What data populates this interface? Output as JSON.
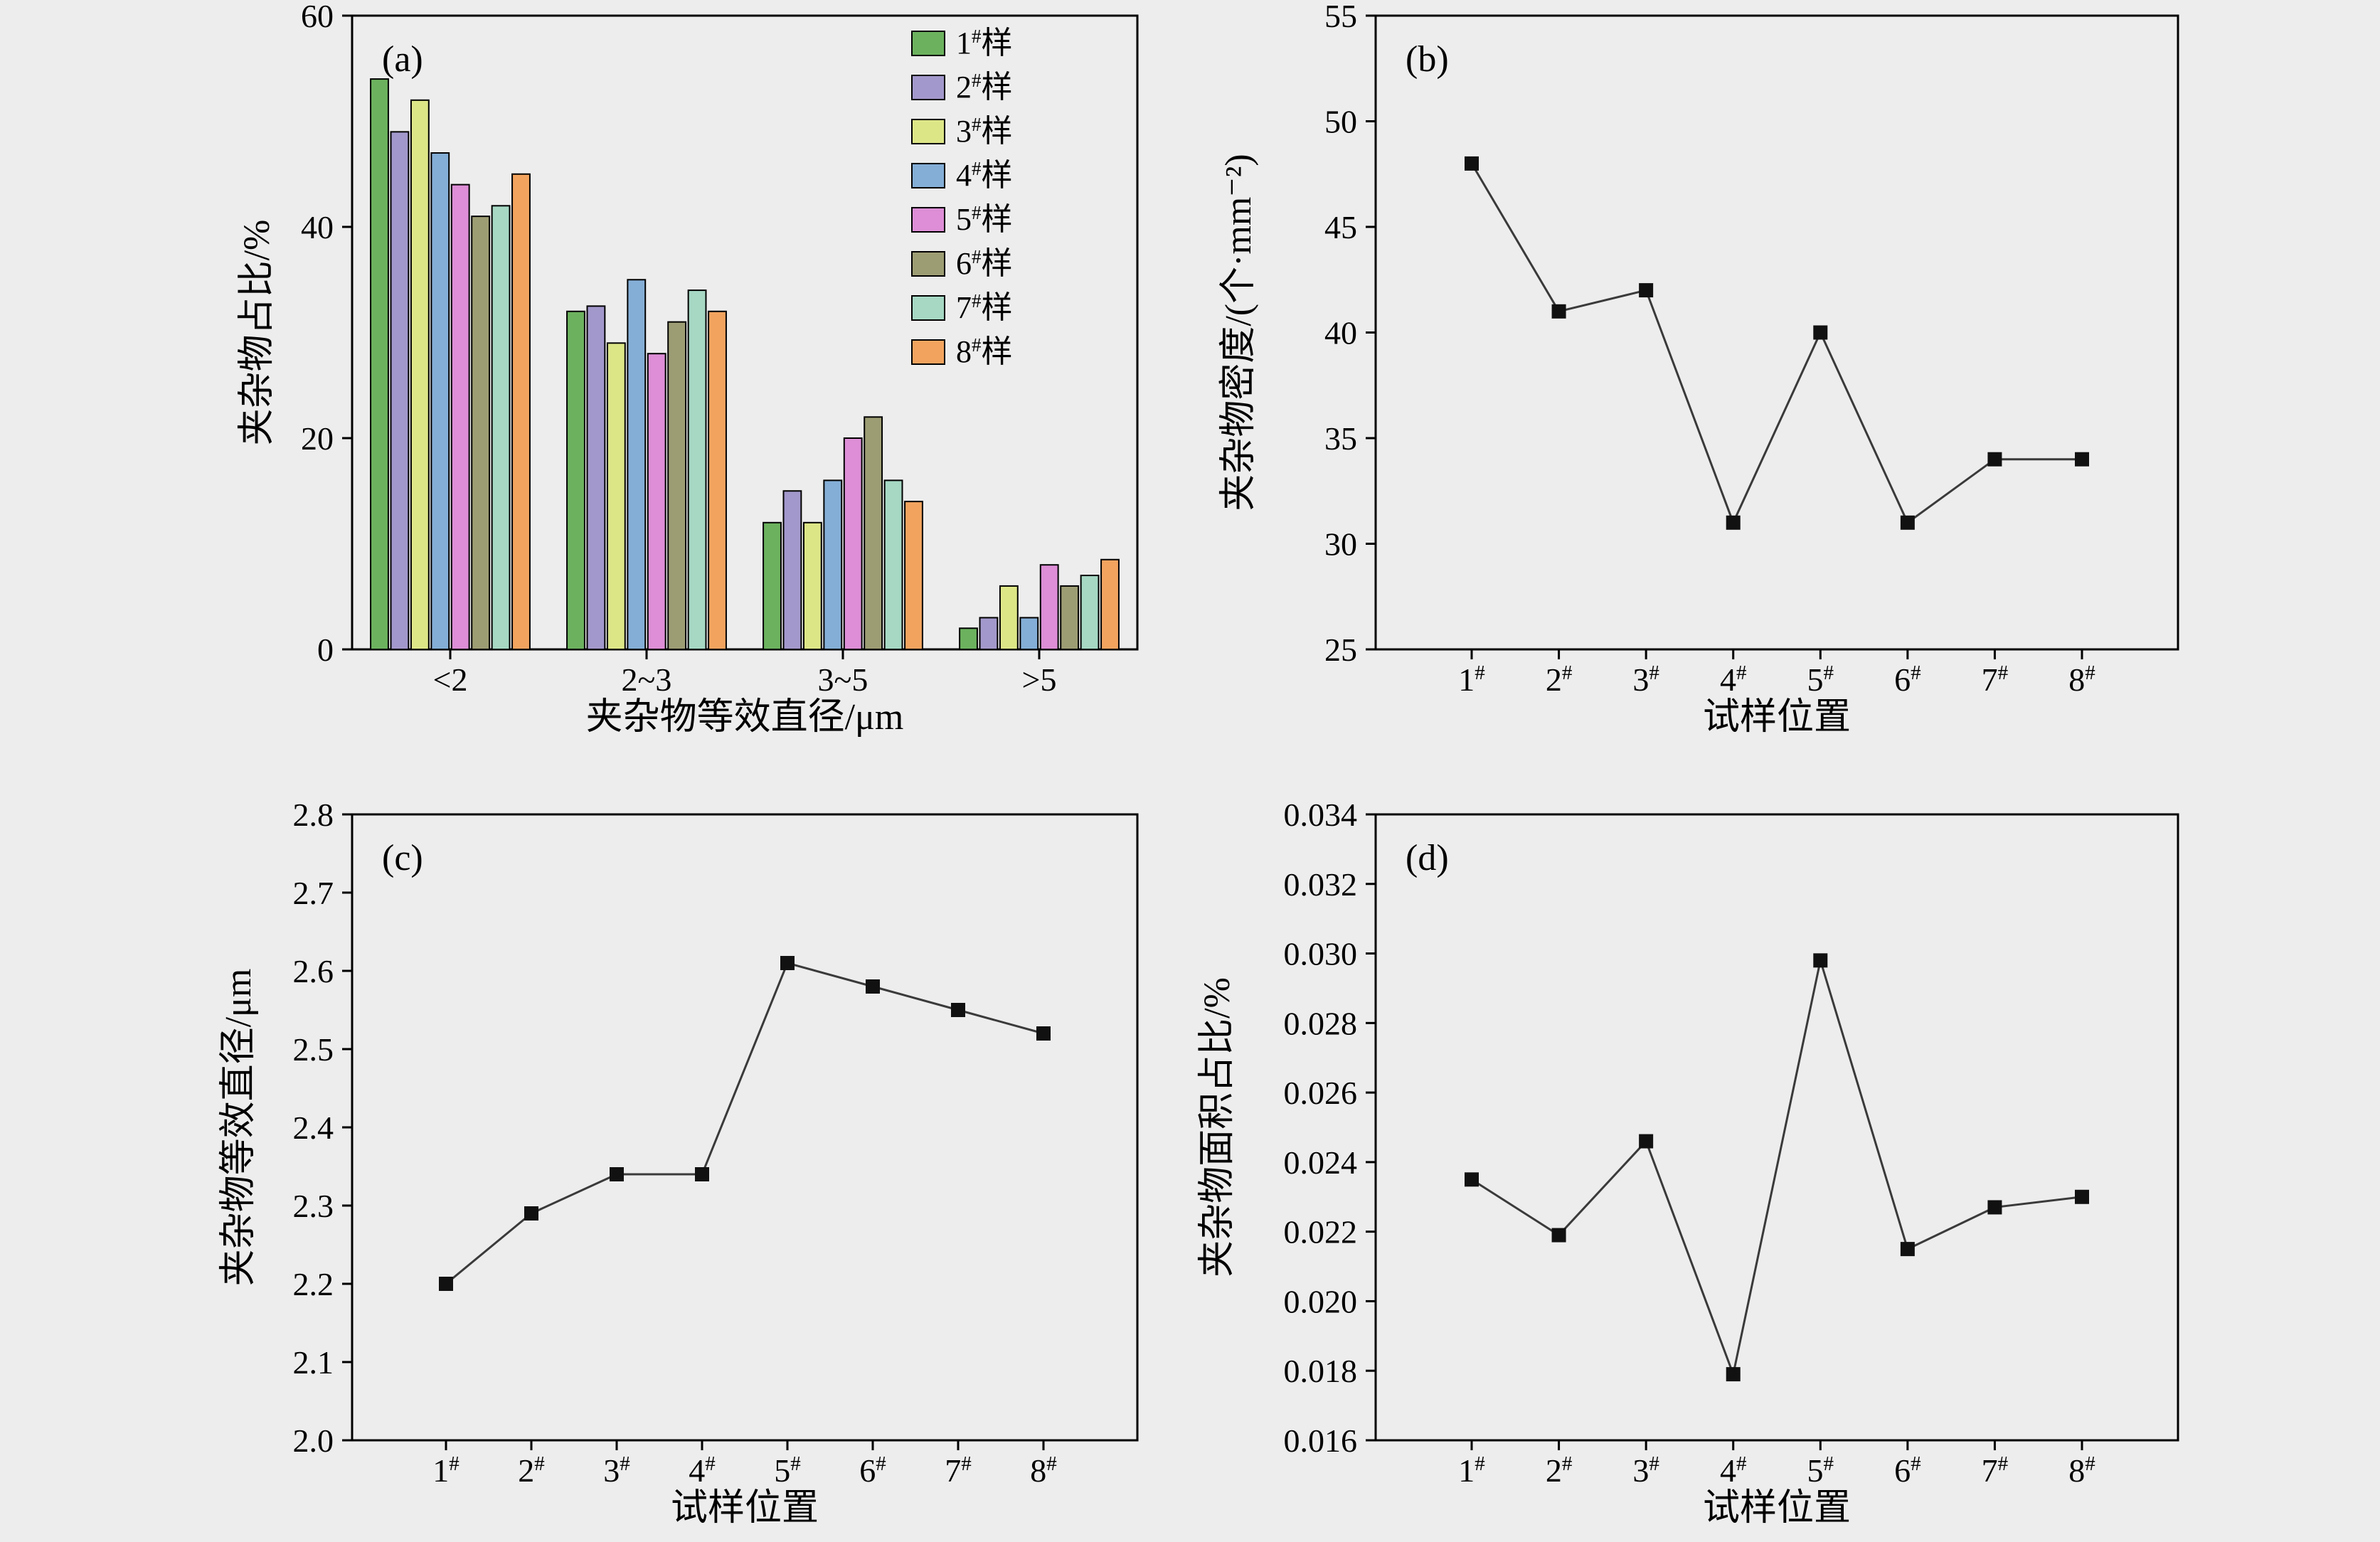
{
  "figure": {
    "background": "#ededed",
    "panel_labels": [
      "(a)",
      "(b)",
      "(c)",
      "(d)"
    ]
  },
  "chart_data": [
    {
      "id": "a",
      "type": "bar",
      "panel_label": "(a)",
      "xlabel": "夹杂物等效直径/μm",
      "ylabel": "夹杂物占比/%",
      "categories": [
        "<2",
        "2~3",
        "3~5",
        ">5"
      ],
      "ylim": [
        0,
        60
      ],
      "yticks": [
        0,
        20,
        40,
        60
      ],
      "grid": false,
      "legend_position": "top-right-inside",
      "series": [
        {
          "name": "1#样",
          "color": "#6cb25e",
          "values": [
            54,
            32,
            12,
            2
          ]
        },
        {
          "name": "2#样",
          "color": "#a398cb",
          "values": [
            49,
            32.5,
            15,
            3
          ]
        },
        {
          "name": "3#样",
          "color": "#dde687",
          "values": [
            52,
            29,
            12,
            6
          ]
        },
        {
          "name": "4#样",
          "color": "#84aed6",
          "values": [
            47,
            35,
            16,
            3
          ]
        },
        {
          "name": "5#样",
          "color": "#dd8ed6",
          "values": [
            44,
            28,
            20,
            8
          ]
        },
        {
          "name": "6#样",
          "color": "#9d9d74",
          "values": [
            41,
            31,
            22,
            6
          ]
        },
        {
          "name": "7#样",
          "color": "#a6d8c4",
          "values": [
            42,
            34,
            16,
            7
          ]
        },
        {
          "name": "8#样",
          "color": "#f2a45f",
          "values": [
            45,
            32,
            14,
            8.5
          ]
        }
      ]
    },
    {
      "id": "b",
      "type": "line",
      "panel_label": "(b)",
      "xlabel": "试样位置",
      "ylabel": "夹杂物密度/(个·mm⁻²)",
      "categories": [
        "1#",
        "2#",
        "3#",
        "4#",
        "5#",
        "6#",
        "7#",
        "8#"
      ],
      "ylim": [
        25,
        55
      ],
      "yticks": [
        25,
        30,
        35,
        40,
        45,
        50,
        55
      ],
      "grid": false,
      "values": [
        48,
        41,
        42,
        31,
        40,
        31,
        34,
        34
      ],
      "line_color": "#3a3a3a",
      "marker": "square",
      "marker_color": "#111111"
    },
    {
      "id": "c",
      "type": "line",
      "panel_label": "(c)",
      "xlabel": "试样位置",
      "ylabel": "夹杂物等效直径/μm",
      "categories": [
        "1#",
        "2#",
        "3#",
        "4#",
        "5#",
        "6#",
        "7#",
        "8#"
      ],
      "ylim": [
        2.0,
        2.8
      ],
      "yticks": [
        2.0,
        2.1,
        2.2,
        2.3,
        2.4,
        2.5,
        2.6,
        2.7,
        2.8
      ],
      "ytick_decimals": 1,
      "grid": false,
      "values": [
        2.2,
        2.29,
        2.34,
        2.34,
        2.61,
        2.58,
        2.55,
        2.52
      ],
      "line_color": "#3a3a3a",
      "marker": "square",
      "marker_color": "#111111"
    },
    {
      "id": "d",
      "type": "line",
      "panel_label": "(d)",
      "xlabel": "试样位置",
      "ylabel": "夹杂物面积占比/%",
      "categories": [
        "1#",
        "2#",
        "3#",
        "4#",
        "5#",
        "6#",
        "7#",
        "8#"
      ],
      "ylim": [
        0.016,
        0.034
      ],
      "yticks": [
        0.016,
        0.018,
        0.02,
        0.022,
        0.024,
        0.026,
        0.028,
        0.03,
        0.032,
        0.034
      ],
      "ytick_decimals": 3,
      "grid": false,
      "values": [
        0.0235,
        0.0219,
        0.0246,
        0.0179,
        0.0298,
        0.0215,
        0.0227,
        0.023
      ],
      "line_color": "#3a3a3a",
      "marker": "square",
      "marker_color": "#111111"
    }
  ]
}
